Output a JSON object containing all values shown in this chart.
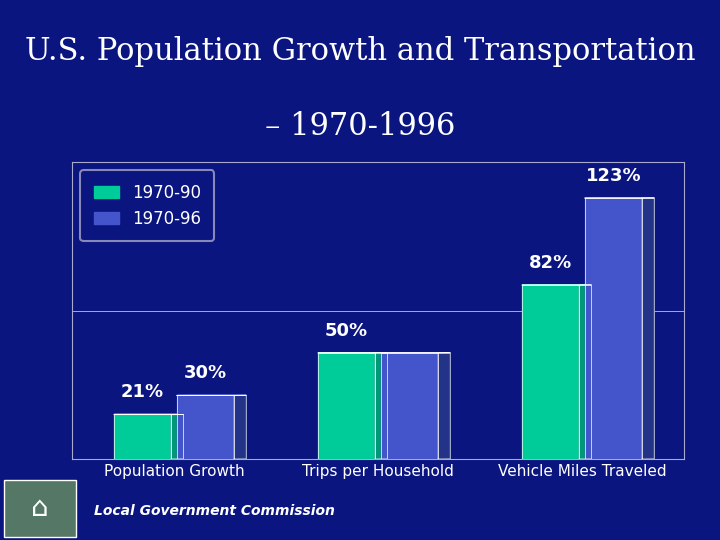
{
  "title_line1": "U.S. Population Growth and Transportation",
  "title_line2": "– 1970-1996",
  "categories": [
    "Population Growth",
    "Trips per Household",
    "Vehicle Miles Traveled"
  ],
  "series": [
    {
      "label": "1970-90",
      "values": [
        21,
        50,
        82
      ],
      "color": "#00CC99",
      "side_color": "#009977",
      "top_color": "#00DDAA"
    },
    {
      "label": "1970-96",
      "values": [
        30,
        50,
        123
      ],
      "color": "#4455CC",
      "side_color": "#223388",
      "top_color": "#5566DD"
    }
  ],
  "bar_labels": [
    [
      "21%",
      "30%"
    ],
    [
      "50%",
      null
    ],
    [
      "82%",
      "123%"
    ]
  ],
  "ylim": [
    0,
    140
  ],
  "background_color": "#0A1580",
  "plot_bg_color": "#0A1580",
  "text_color": "#FFFFFF",
  "title_fontsize": 22,
  "label_fontsize": 13,
  "tick_fontsize": 11,
  "legend_fontsize": 12,
  "bar_width": 0.28,
  "footer_text": "Local Government Commission",
  "footer_bg": "#6B9B5A",
  "depth": 0.08
}
